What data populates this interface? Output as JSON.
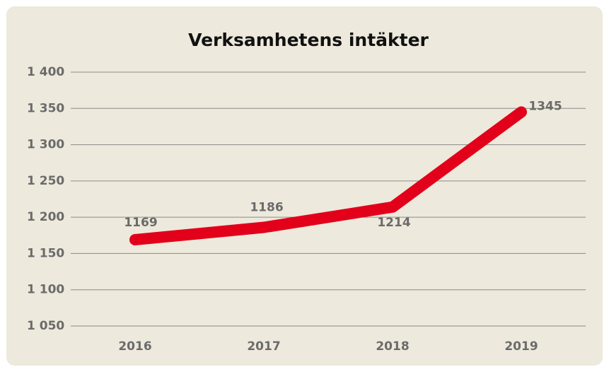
{
  "chart_data": {
    "type": "line",
    "title": "Verksamhetens intäkter",
    "categories": [
      "2016",
      "2017",
      "2018",
      "2019"
    ],
    "series": [
      {
        "name": "Verksamhetens intäkter",
        "color": "#e2001a",
        "values": [
          1169,
          1186,
          1214,
          1345
        ]
      }
    ],
    "ylim": [
      1050,
      1400
    ],
    "yticks": [
      {
        "value": 1050,
        "label": "1 050"
      },
      {
        "value": 1100,
        "label": "1 100"
      },
      {
        "value": 1150,
        "label": "1 150"
      },
      {
        "value": 1200,
        "label": "1 200"
      },
      {
        "value": 1250,
        "label": "1 250"
      },
      {
        "value": 1300,
        "label": "1 300"
      },
      {
        "value": 1350,
        "label": "1 350"
      },
      {
        "value": 1400,
        "label": "1 400"
      }
    ],
    "grid": true
  }
}
